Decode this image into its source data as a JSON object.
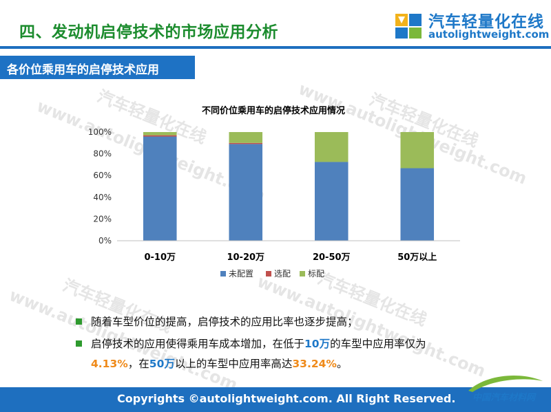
{
  "header": {
    "title": "四、发动机启停技术的市场应用分析",
    "logo_cn": "汽车轻量化在线",
    "logo_en": "autolightweight.com"
  },
  "section": {
    "label": "各价位乘用车的启停技术应用"
  },
  "watermark": {
    "cn": "汽车轻量化在线",
    "en": "www.autolightweight.com"
  },
  "chart_data": {
    "type": "bar",
    "stacked": true,
    "percent": true,
    "title": "不同价位乘用车的启停技术应用情况",
    "categories": [
      "0-10万",
      "10-20万",
      "20-50万",
      "50万以上"
    ],
    "series": [
      {
        "name": "未配置",
        "color": "#4f81bd",
        "values": [
          95.87,
          89.0,
          72.5,
          66.76
        ]
      },
      {
        "name": "选配",
        "color": "#c0504d",
        "values": [
          1.2,
          1.0,
          0.0,
          0.0
        ]
      },
      {
        "name": "标配",
        "color": "#9bbb59",
        "values": [
          2.93,
          10.0,
          27.5,
          33.24
        ]
      }
    ],
    "ylim": [
      0,
      100
    ],
    "yticks": [
      "0%",
      "20%",
      "40%",
      "60%",
      "80%",
      "100%"
    ],
    "legend_position": "bottom",
    "grid": false
  },
  "bullets": {
    "b1": "随着车型价位的提高，启停技术的应用比率也逐步提高；",
    "b2_pre": "启停技术的应用使得乘用车成本增加，在低于",
    "b2_hl1": "10万",
    "b2_mid": "的车型中应用率仅为",
    "b2_hl2": "4.13%",
    "b2_mid2": "，在",
    "b2_hl3": "50万",
    "b2_mid3": "以上的车型中应用率高达",
    "b2_hl4": "33.24%",
    "b2_end": "。"
  },
  "footer": {
    "copyright": "Copyrights ©autolightweight.com. All Right Reserved.",
    "logo_text": "中国汽车材料网"
  },
  "colors": {
    "accent_green": "#1c8c2e",
    "brand_blue": "#1e6fbf",
    "highlight_orange": "#ef8a1a"
  }
}
